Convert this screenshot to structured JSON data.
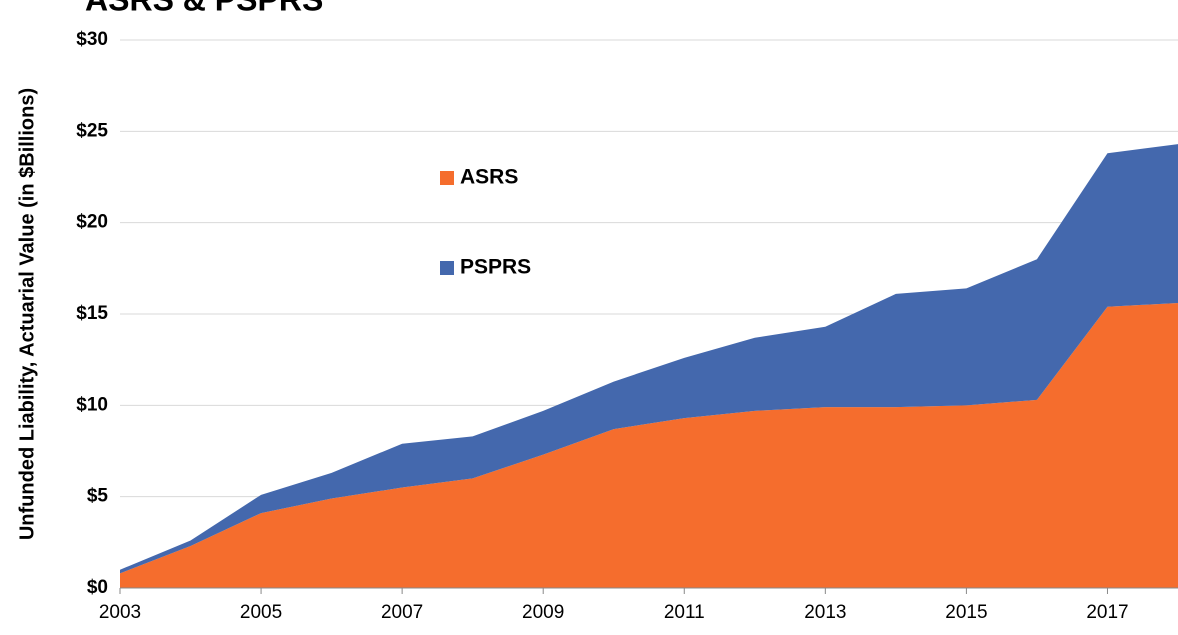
{
  "chart_data": {
    "type": "stacked_area",
    "title": "ASRS & PSPRS",
    "y_label": "Unfunded Liability, Actuarial Value (in $Billions)",
    "x": [
      2003,
      2004,
      2005,
      2006,
      2007,
      2008,
      2009,
      2010,
      2011,
      2012,
      2013,
      2014,
      2015,
      2016,
      2017,
      2018
    ],
    "series": [
      {
        "name": "ASRS",
        "color": "#f56d2d",
        "values": [
          0.8,
          2.3,
          4.1,
          4.9,
          5.5,
          6.0,
          7.3,
          8.7,
          9.3,
          9.7,
          9.9,
          9.9,
          10.0,
          10.3,
          15.4,
          15.6
        ]
      },
      {
        "name": "PSPRS",
        "color": "#4468ad",
        "values": [
          0.2,
          0.3,
          1.0,
          1.4,
          2.4,
          2.3,
          2.4,
          2.6,
          3.3,
          4.0,
          4.4,
          6.2,
          6.4,
          7.7,
          8.4,
          8.7
        ]
      }
    ],
    "xlim": [
      2003,
      2018
    ],
    "xticks": [
      2003,
      2005,
      2007,
      2009,
      2011,
      2013,
      2015,
      2017
    ],
    "ylim": [
      0,
      30
    ],
    "yticks": [
      {
        "value": 0,
        "label": "$0"
      },
      {
        "value": 5,
        "label": "$5"
      },
      {
        "value": 10,
        "label": "$10"
      },
      {
        "value": 15,
        "label": "$15"
      },
      {
        "value": 20,
        "label": "$20"
      },
      {
        "value": 25,
        "label": "$25"
      },
      {
        "value": 30,
        "label": "$30"
      }
    ],
    "grid": true
  }
}
